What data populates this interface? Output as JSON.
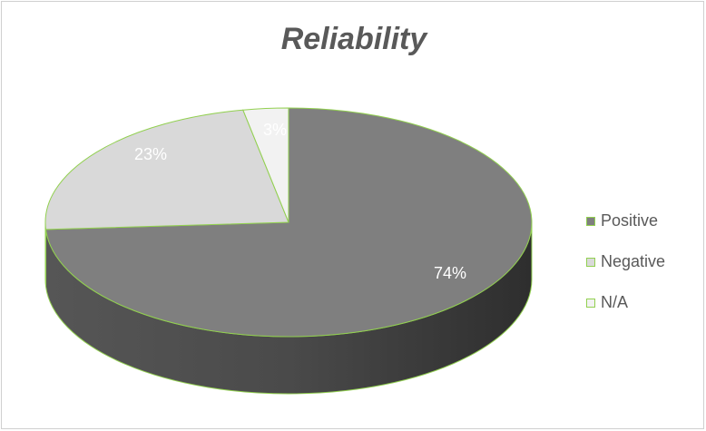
{
  "chart_data": {
    "type": "pie",
    "title": "Reliability",
    "categories": [
      "Positive",
      "Negative",
      "N/A"
    ],
    "values": [
      74,
      23,
      3
    ],
    "labels": [
      "74%",
      "23%",
      "3%"
    ],
    "colors": [
      "#7f7f7f",
      "#d9d9d9",
      "#f2f2f2"
    ],
    "side_colors": [
      "#3c3c3c",
      "#8c8c8c",
      "#b4b4b4"
    ],
    "edge_color": "#92d050",
    "three_d": true,
    "legend_position": "right"
  }
}
